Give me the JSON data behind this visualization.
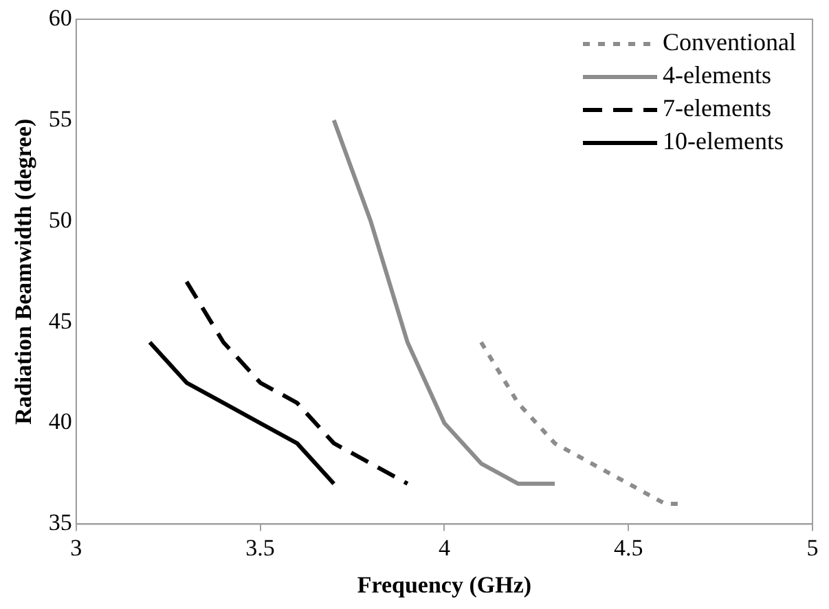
{
  "chart_data": {
    "type": "line",
    "xlabel": "Frequency (GHz)",
    "ylabel": "Radiation Beamwidth (degree)",
    "xlim": [
      3,
      5
    ],
    "xticks": [
      3,
      3.5,
      4,
      4.5,
      5
    ],
    "ylim": [
      35,
      60
    ],
    "yticks": [
      35,
      40,
      45,
      50,
      55,
      60
    ],
    "grid": false,
    "legend": "top right",
    "marker": "none",
    "series": [
      {
        "name": "Conventional",
        "color": "#8c8c8c",
        "line_style": "dotted",
        "x": [
          4.1,
          4.2,
          4.3,
          4.4,
          4.5,
          4.6,
          4.65
        ],
        "values": [
          44,
          41,
          39,
          38,
          37,
          36,
          36
        ]
      },
      {
        "name": "4-elements",
        "color": "#8c8c8c",
        "line_style": "solid",
        "x": [
          3.7,
          3.8,
          3.9,
          4.0,
          4.1,
          4.2,
          4.3
        ],
        "values": [
          55,
          50,
          44,
          40,
          38,
          37,
          37
        ]
      },
      {
        "name": "7-elements",
        "color": "#000000",
        "line_style": "dashed",
        "x": [
          3.3,
          3.4,
          3.5,
          3.6,
          3.7,
          3.8,
          3.9
        ],
        "values": [
          47,
          44,
          42,
          41,
          39,
          38,
          37
        ]
      },
      {
        "name": "10-elements",
        "color": "#000000",
        "line_style": "solid",
        "x": [
          3.2,
          3.3,
          3.4,
          3.5,
          3.6,
          3.7
        ],
        "values": [
          44,
          42,
          41,
          40,
          39,
          37
        ]
      }
    ]
  }
}
